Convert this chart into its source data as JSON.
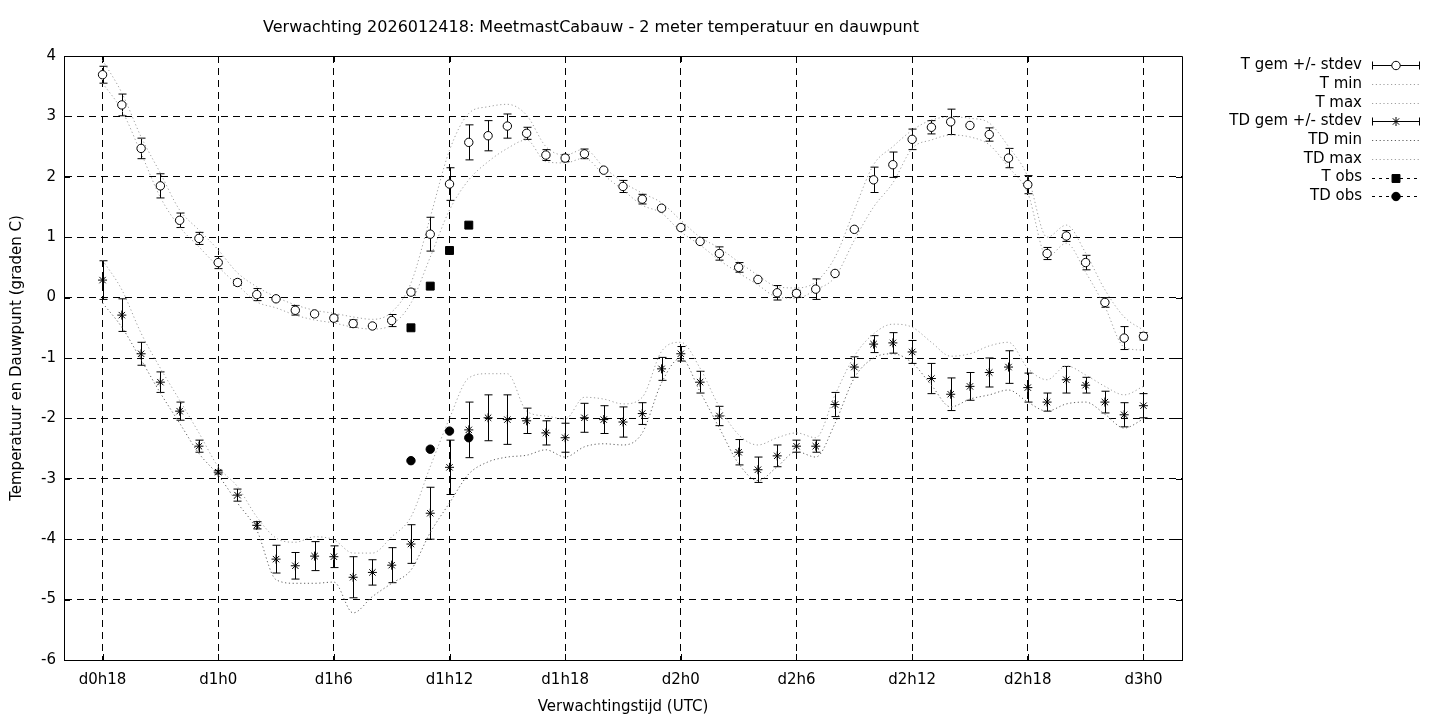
{
  "chart_data": {
    "type": "scatter",
    "title": "Verwachting 2026012418: MeetmastCabauw - 2 meter temperatuur en dauwpunt",
    "xlabel": "Verwachtingstijd (UTC)",
    "ylabel": "Temperatuur en Dauwpunt (graden C)",
    "categories": [
      "d0h18",
      null,
      null,
      null,
      null,
      null,
      "d1h0",
      null,
      null,
      null,
      null,
      null,
      "d1h6",
      null,
      null,
      null,
      null,
      null,
      "d1h12",
      null,
      null,
      null,
      null,
      null,
      "d1h18",
      null,
      null,
      null,
      null,
      null,
      "d2h0",
      null,
      null,
      null,
      null,
      null,
      "d2h6",
      null,
      null,
      null,
      null,
      null,
      "d2h12",
      null,
      null,
      null,
      null,
      null,
      "d2h18",
      null,
      null,
      null,
      null,
      null,
      "d3h0"
    ],
    "ylim": [
      -6,
      4
    ],
    "yticks": [
      -6,
      -5,
      -4,
      -3,
      -2,
      -1,
      0,
      1,
      2,
      3,
      4
    ],
    "grid": true,
    "legend": "right",
    "series": [
      {
        "name": "T gem +/- stdev",
        "marker": "circle",
        "color": "#000000",
        "values": [
          3.69,
          3.19,
          2.47,
          1.85,
          1.28,
          0.98,
          0.58,
          0.25,
          0.05,
          -0.02,
          -0.21,
          -0.27,
          -0.34,
          -0.43,
          -0.47,
          -0.38,
          0.09,
          1.05,
          1.88,
          2.57,
          2.68,
          2.84,
          2.72,
          2.36,
          2.31,
          2.38,
          2.11,
          1.84,
          1.63,
          1.48,
          1.16,
          0.93,
          0.73,
          0.5,
          0.3,
          0.08,
          0.07,
          0.14,
          0.4,
          1.13,
          1.95,
          2.2,
          2.62,
          2.82,
          2.91,
          2.85,
          2.7,
          2.31,
          1.87,
          0.73,
          1.02,
          0.58,
          -0.08,
          -0.67,
          -0.64
        ],
        "errors": [
          0.14,
          0.18,
          0.17,
          0.2,
          0.12,
          0.1,
          0.1,
          0.05,
          0.1,
          null,
          0.08,
          null,
          0.05,
          0.06,
          null,
          0.1,
          0.05,
          0.28,
          0.27,
          0.29,
          0.25,
          0.2,
          0.1,
          0.09,
          0.06,
          0.08,
          null,
          0.1,
          0.08,
          null,
          0.04,
          null,
          0.11,
          0.08,
          null,
          0.12,
          0.05,
          0.17,
          null,
          null,
          0.21,
          0.21,
          0.17,
          0.11,
          0.21,
          null,
          0.11,
          0.16,
          0.15,
          0.1,
          0.09,
          0.12,
          0.08,
          0.19,
          0.06
        ]
      },
      {
        "name": "T min",
        "type": "line",
        "line_style": "dotted",
        "marker": "none",
        "color": "#a0a0a0",
        "values": [
          3.55,
          3.1,
          2.39,
          1.66,
          1.17,
          0.84,
          0.51,
          0.21,
          -0.07,
          -0.17,
          -0.29,
          -0.37,
          -0.42,
          -0.49,
          -0.52,
          -0.45,
          -0.09,
          0.67,
          1.45,
          1.95,
          2.25,
          2.47,
          2.61,
          2.25,
          2.23,
          2.31,
          2.03,
          1.78,
          1.53,
          1.4,
          1.09,
          0.87,
          0.62,
          0.41,
          0.21,
          0.01,
          -0.01,
          0.13,
          0.34,
          0.95,
          1.5,
          1.9,
          2.47,
          2.61,
          2.69,
          2.66,
          2.53,
          2.16,
          1.73,
          0.67,
          0.9,
          0.42,
          -0.15,
          -0.82,
          -0.87
        ]
      },
      {
        "name": "T max",
        "type": "line",
        "line_style": "dotted",
        "marker": "none",
        "color": "#a0a0a0",
        "values": [
          3.93,
          3.39,
          2.66,
          2.06,
          1.45,
          1.12,
          0.79,
          0.41,
          0.18,
          0.01,
          -0.12,
          -0.21,
          -0.26,
          -0.32,
          -0.36,
          -0.24,
          0.24,
          1.33,
          2.44,
          3.05,
          3.16,
          3.2,
          3.02,
          2.5,
          2.36,
          2.46,
          2.16,
          1.91,
          1.73,
          1.57,
          1.28,
          1.0,
          0.82,
          0.59,
          0.37,
          0.18,
          0.16,
          0.26,
          0.67,
          1.45,
          2.2,
          2.5,
          2.77,
          2.94,
          2.99,
          2.97,
          2.89,
          2.5,
          2.0,
          1.0,
          1.2,
          0.74,
          0.13,
          -0.32,
          -0.54
        ]
      },
      {
        "name": "TD gem +/- stdev",
        "marker": "cross",
        "color": "#000000",
        "values": [
          0.29,
          -0.29,
          -0.93,
          -1.4,
          -1.88,
          -2.46,
          -2.89,
          -3.27,
          -3.77,
          -4.33,
          -4.44,
          -4.28,
          -4.29,
          -4.63,
          -4.55,
          -4.43,
          -4.08,
          -3.57,
          -2.81,
          -2.19,
          -1.99,
          -2.02,
          -2.04,
          -2.24,
          -2.32,
          -1.99,
          -2.02,
          -2.06,
          -1.92,
          -1.18,
          -0.93,
          -1.4,
          -1.96,
          -2.56,
          -2.85,
          -2.62,
          -2.46,
          -2.46,
          -1.77,
          -1.15,
          -0.77,
          -0.75,
          -0.9,
          -1.34,
          -1.6,
          -1.47,
          -1.24,
          -1.15,
          -1.49,
          -1.73,
          -1.36,
          -1.45,
          -1.73,
          -1.94,
          -1.79
        ],
        "errors": [
          0.32,
          0.27,
          0.19,
          0.17,
          0.15,
          0.1,
          0.03,
          0.1,
          0.06,
          0.23,
          0.22,
          0.24,
          0.18,
          0.34,
          0.21,
          0.29,
          0.32,
          0.43,
          0.45,
          0.46,
          0.38,
          0.41,
          0.21,
          0.2,
          0.24,
          0.24,
          0.23,
          0.25,
          0.18,
          0.19,
          0.12,
          0.18,
          0.16,
          0.21,
          0.21,
          0.18,
          0.1,
          0.1,
          0.2,
          0.17,
          0.14,
          0.17,
          0.19,
          0.25,
          0.27,
          0.23,
          0.24,
          0.27,
          0.24,
          0.15,
          0.22,
          0.13,
          0.18,
          0.2,
          0.2
        ]
      },
      {
        "name": "TD min",
        "type": "line",
        "line_style": "dotted",
        "marker": "none",
        "color": "#606060",
        "values": [
          -0.09,
          -0.49,
          -1.03,
          -1.58,
          -2.08,
          -2.58,
          -2.94,
          -3.4,
          -3.85,
          -4.67,
          -4.73,
          -4.73,
          -4.71,
          -5.22,
          -4.95,
          -4.73,
          -4.51,
          -3.89,
          -3.4,
          -2.92,
          -2.72,
          -2.64,
          -2.61,
          -2.52,
          -2.64,
          -2.47,
          -2.42,
          -2.44,
          -2.24,
          -1.41,
          -1.0,
          -1.56,
          -2.16,
          -2.75,
          -3.03,
          -2.8,
          -2.55,
          -2.64,
          -2.08,
          -1.33,
          -1.0,
          -0.93,
          -1.08,
          -1.45,
          -1.81,
          -1.68,
          -1.61,
          -1.53,
          -1.73,
          -1.88,
          -1.76,
          -1.73,
          -1.93,
          -2.16,
          -2.01
        ]
      },
      {
        "name": "TD max",
        "type": "line",
        "line_style": "dotted",
        "marker": "none",
        "color": "#a0a0a0",
        "values": [
          0.62,
          0.13,
          -0.59,
          -1.17,
          -1.7,
          -2.24,
          -2.8,
          -3.13,
          -3.63,
          -3.98,
          -4.05,
          -3.96,
          -4.01,
          -4.23,
          -4.23,
          -3.96,
          -3.63,
          -2.8,
          -2.0,
          -1.33,
          -1.26,
          -1.26,
          -1.88,
          -1.96,
          -2.01,
          -1.65,
          -1.68,
          -1.76,
          -1.65,
          -0.89,
          -0.74,
          -1.17,
          -1.81,
          -2.27,
          -2.44,
          -2.32,
          -2.24,
          -2.32,
          -1.61,
          -0.97,
          -0.6,
          -0.44,
          -0.49,
          -0.74,
          -0.97,
          -0.93,
          -0.8,
          -0.74,
          -1.17,
          -1.36,
          -1.13,
          -1.28,
          -1.47,
          -1.61,
          -1.47
        ]
      },
      {
        "name": "T obs",
        "marker": "square",
        "color": "#000000",
        "values": [
          null,
          null,
          null,
          null,
          null,
          null,
          null,
          null,
          null,
          null,
          null,
          null,
          null,
          null,
          null,
          null,
          -0.5,
          0.19,
          0.78,
          1.2,
          null,
          null,
          null,
          null,
          null,
          null,
          null,
          null,
          null,
          null,
          null,
          null,
          null,
          null,
          null,
          null,
          null,
          null,
          null,
          null,
          null,
          null,
          null,
          null,
          null,
          null,
          null,
          null,
          null,
          null,
          null,
          null,
          null,
          null,
          null
        ]
      },
      {
        "name": "TD obs",
        "marker": "circle",
        "color": "#000000",
        "values": [
          null,
          null,
          null,
          null,
          null,
          null,
          null,
          null,
          null,
          null,
          null,
          null,
          null,
          null,
          null,
          null,
          -2.7,
          -2.51,
          -2.21,
          -2.32,
          null,
          null,
          null,
          null,
          null,
          null,
          null,
          null,
          null,
          null,
          null,
          null,
          null,
          null,
          null,
          null,
          null,
          null,
          null,
          null,
          null,
          null,
          null,
          null,
          null,
          null,
          null,
          null,
          null,
          null,
          null,
          null,
          null,
          null,
          null
        ]
      }
    ]
  }
}
